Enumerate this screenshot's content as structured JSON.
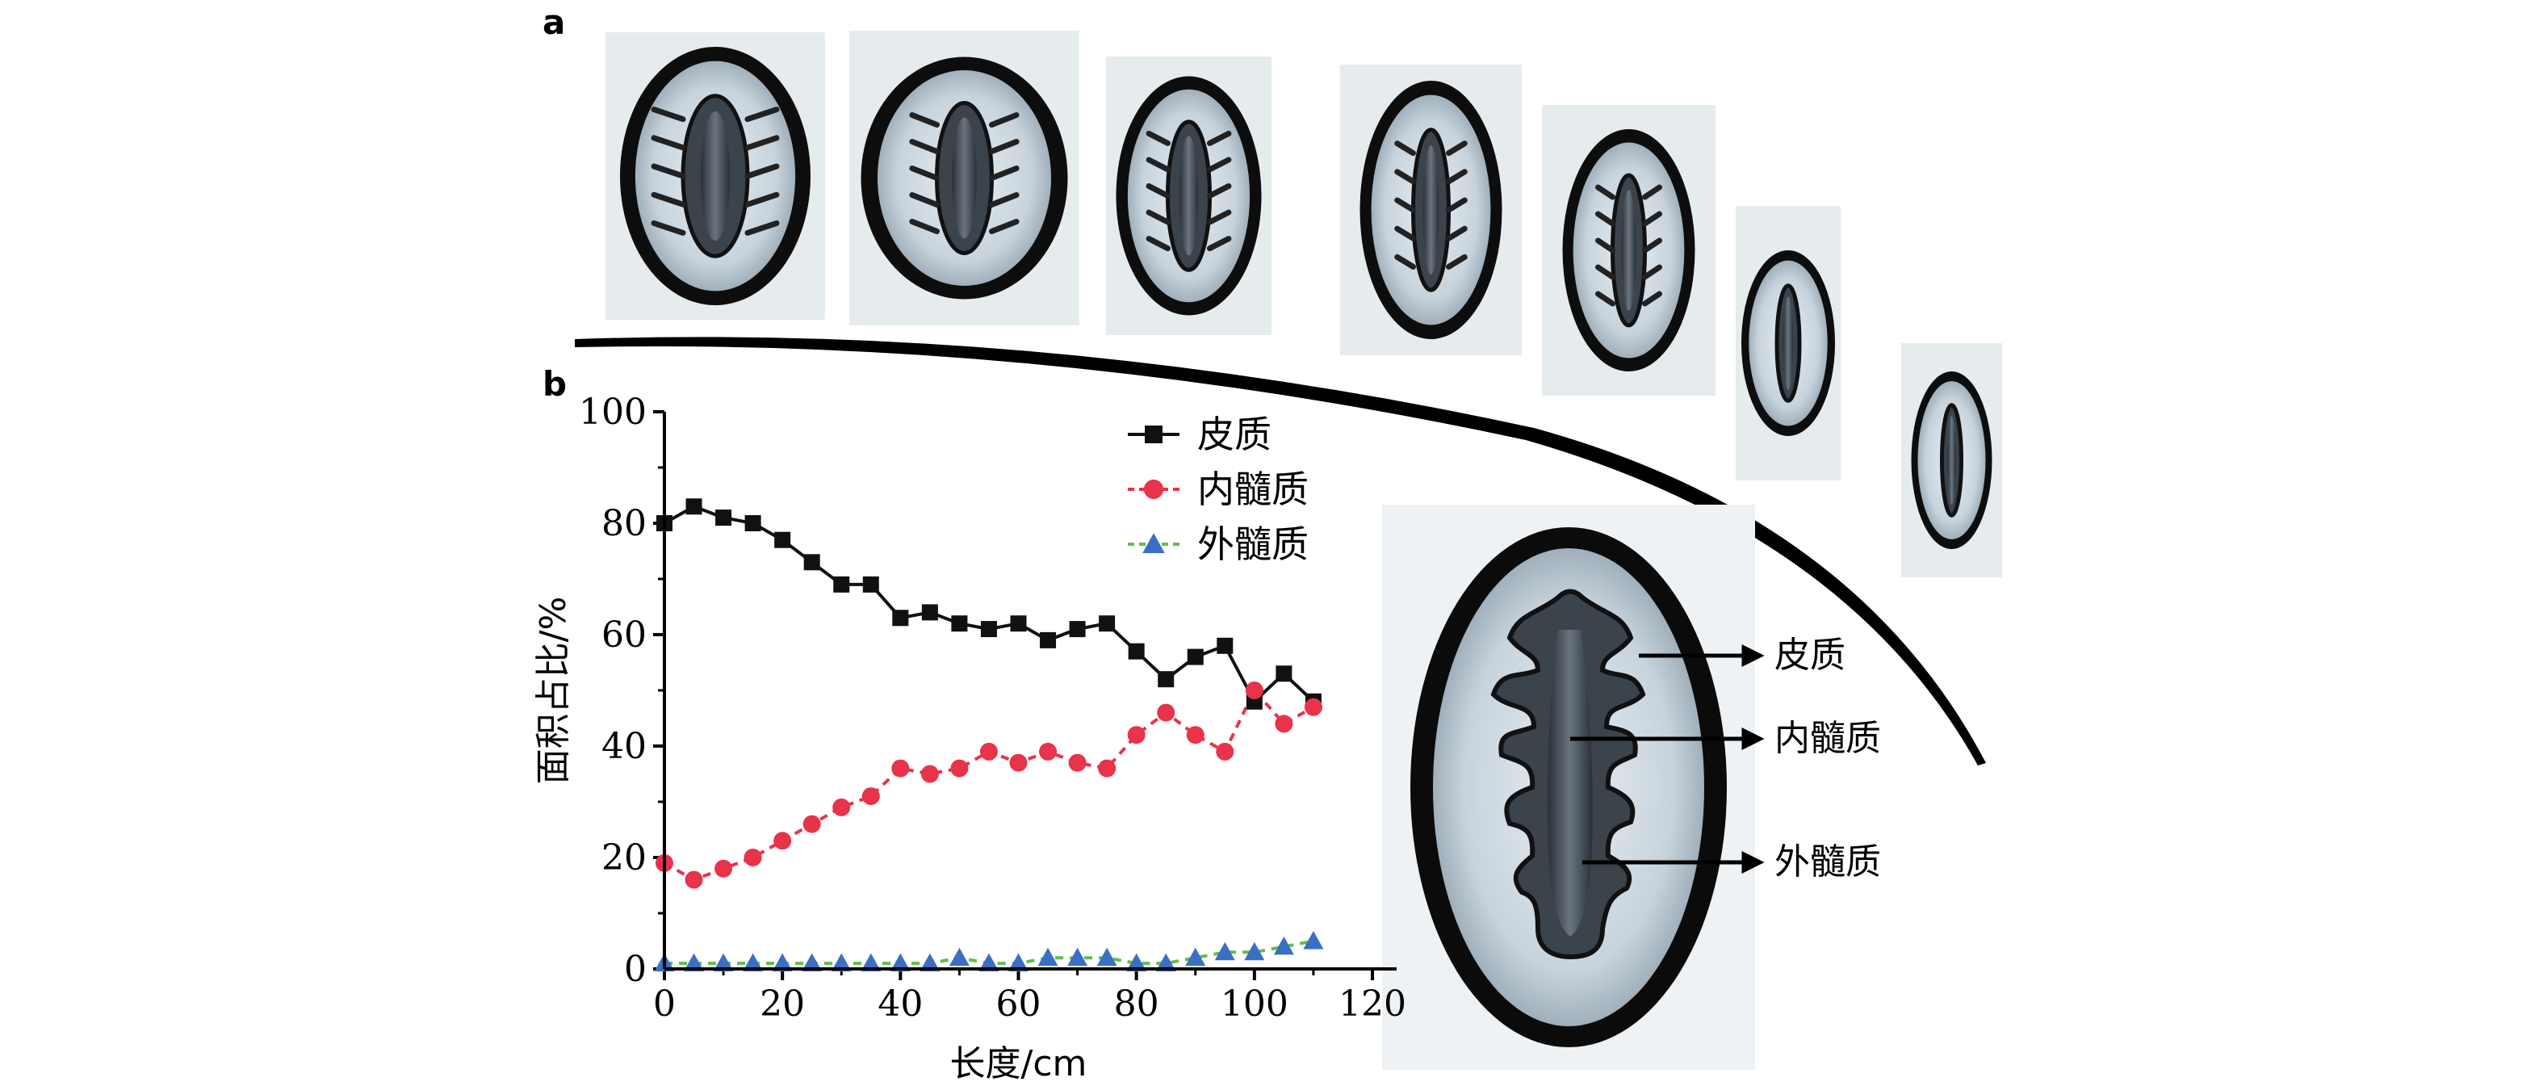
{
  "figure": {
    "panel_a_label": "a",
    "panel_b_label": "b"
  },
  "inset": {
    "labels": [
      "皮质",
      "内髓质",
      "外髓质"
    ]
  },
  "colors": {
    "cortex": "#111111",
    "inner_medulla": "#e8334a",
    "outer_medulla": "#3a6fc4",
    "outer_medulla_line": "#5fbf4a"
  },
  "chart_data": {
    "type": "line",
    "xlabel": "长度/cm",
    "ylabel": "面积占比/%",
    "xlim": [
      0,
      120
    ],
    "ylim": [
      0,
      100
    ],
    "xticks": [
      0,
      20,
      40,
      60,
      80,
      100,
      120
    ],
    "yticks": [
      0,
      20,
      40,
      60,
      80,
      100
    ],
    "legend_position": "top-right",
    "x": [
      0,
      5,
      10,
      15,
      20,
      25,
      30,
      35,
      40,
      45,
      50,
      55,
      60,
      65,
      70,
      75,
      80,
      85,
      90,
      95,
      100,
      105,
      110
    ],
    "series": [
      {
        "name": "皮质",
        "marker": "square",
        "values": [
          80,
          83,
          81,
          80,
          77,
          73,
          69,
          69,
          63,
          64,
          62,
          61,
          62,
          59,
          61,
          62,
          57,
          52,
          56,
          58,
          48,
          53,
          48
        ]
      },
      {
        "name": "内髓质",
        "marker": "circle",
        "values": [
          19,
          16,
          18,
          20,
          23,
          26,
          29,
          31,
          36,
          35,
          36,
          39,
          37,
          39,
          37,
          36,
          42,
          46,
          42,
          39,
          50,
          44,
          47
        ]
      },
      {
        "name": "外髓质",
        "marker": "triangle",
        "values": [
          1,
          1,
          1,
          1,
          1,
          1,
          1,
          1,
          1,
          1,
          2,
          1,
          1,
          2,
          2,
          2,
          1,
          1,
          2,
          3,
          3,
          4,
          5
        ]
      }
    ]
  }
}
